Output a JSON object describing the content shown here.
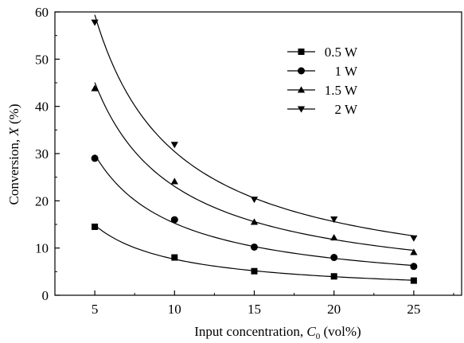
{
  "chart_data": {
    "type": "scatter",
    "xlabel": {
      "prefix": "Input concentration, ",
      "var": "C",
      "sub": "0",
      "suffix": " (vol%)"
    },
    "ylabel": {
      "prefix": "Conversion, ",
      "var": "X",
      "suffix": " (%)"
    },
    "xlim": [
      2.5,
      28
    ],
    "ylim": [
      0,
      60
    ],
    "xticks": [
      5,
      10,
      15,
      20,
      25
    ],
    "yticks": [
      0,
      10,
      20,
      30,
      40,
      50,
      60
    ],
    "grid": false,
    "legend_position": "top-right",
    "x": [
      5,
      10,
      15,
      20,
      25
    ],
    "series": [
      {
        "name": "0.5 W",
        "marker": "square",
        "values": [
          14.5,
          8.0,
          5.1,
          4.0,
          3.1
        ]
      },
      {
        "name": "1 W",
        "marker": "circle",
        "values": [
          29.0,
          16.0,
          10.2,
          8.0,
          6.1
        ]
      },
      {
        "name": "1.5 W",
        "marker": "triangle-up",
        "values": [
          43.8,
          24.1,
          15.5,
          12.2,
          9.1
        ]
      },
      {
        "name": "2 W",
        "marker": "triangle-down",
        "values": [
          57.8,
          31.9,
          20.3,
          16.1,
          12.1
        ]
      }
    ]
  }
}
